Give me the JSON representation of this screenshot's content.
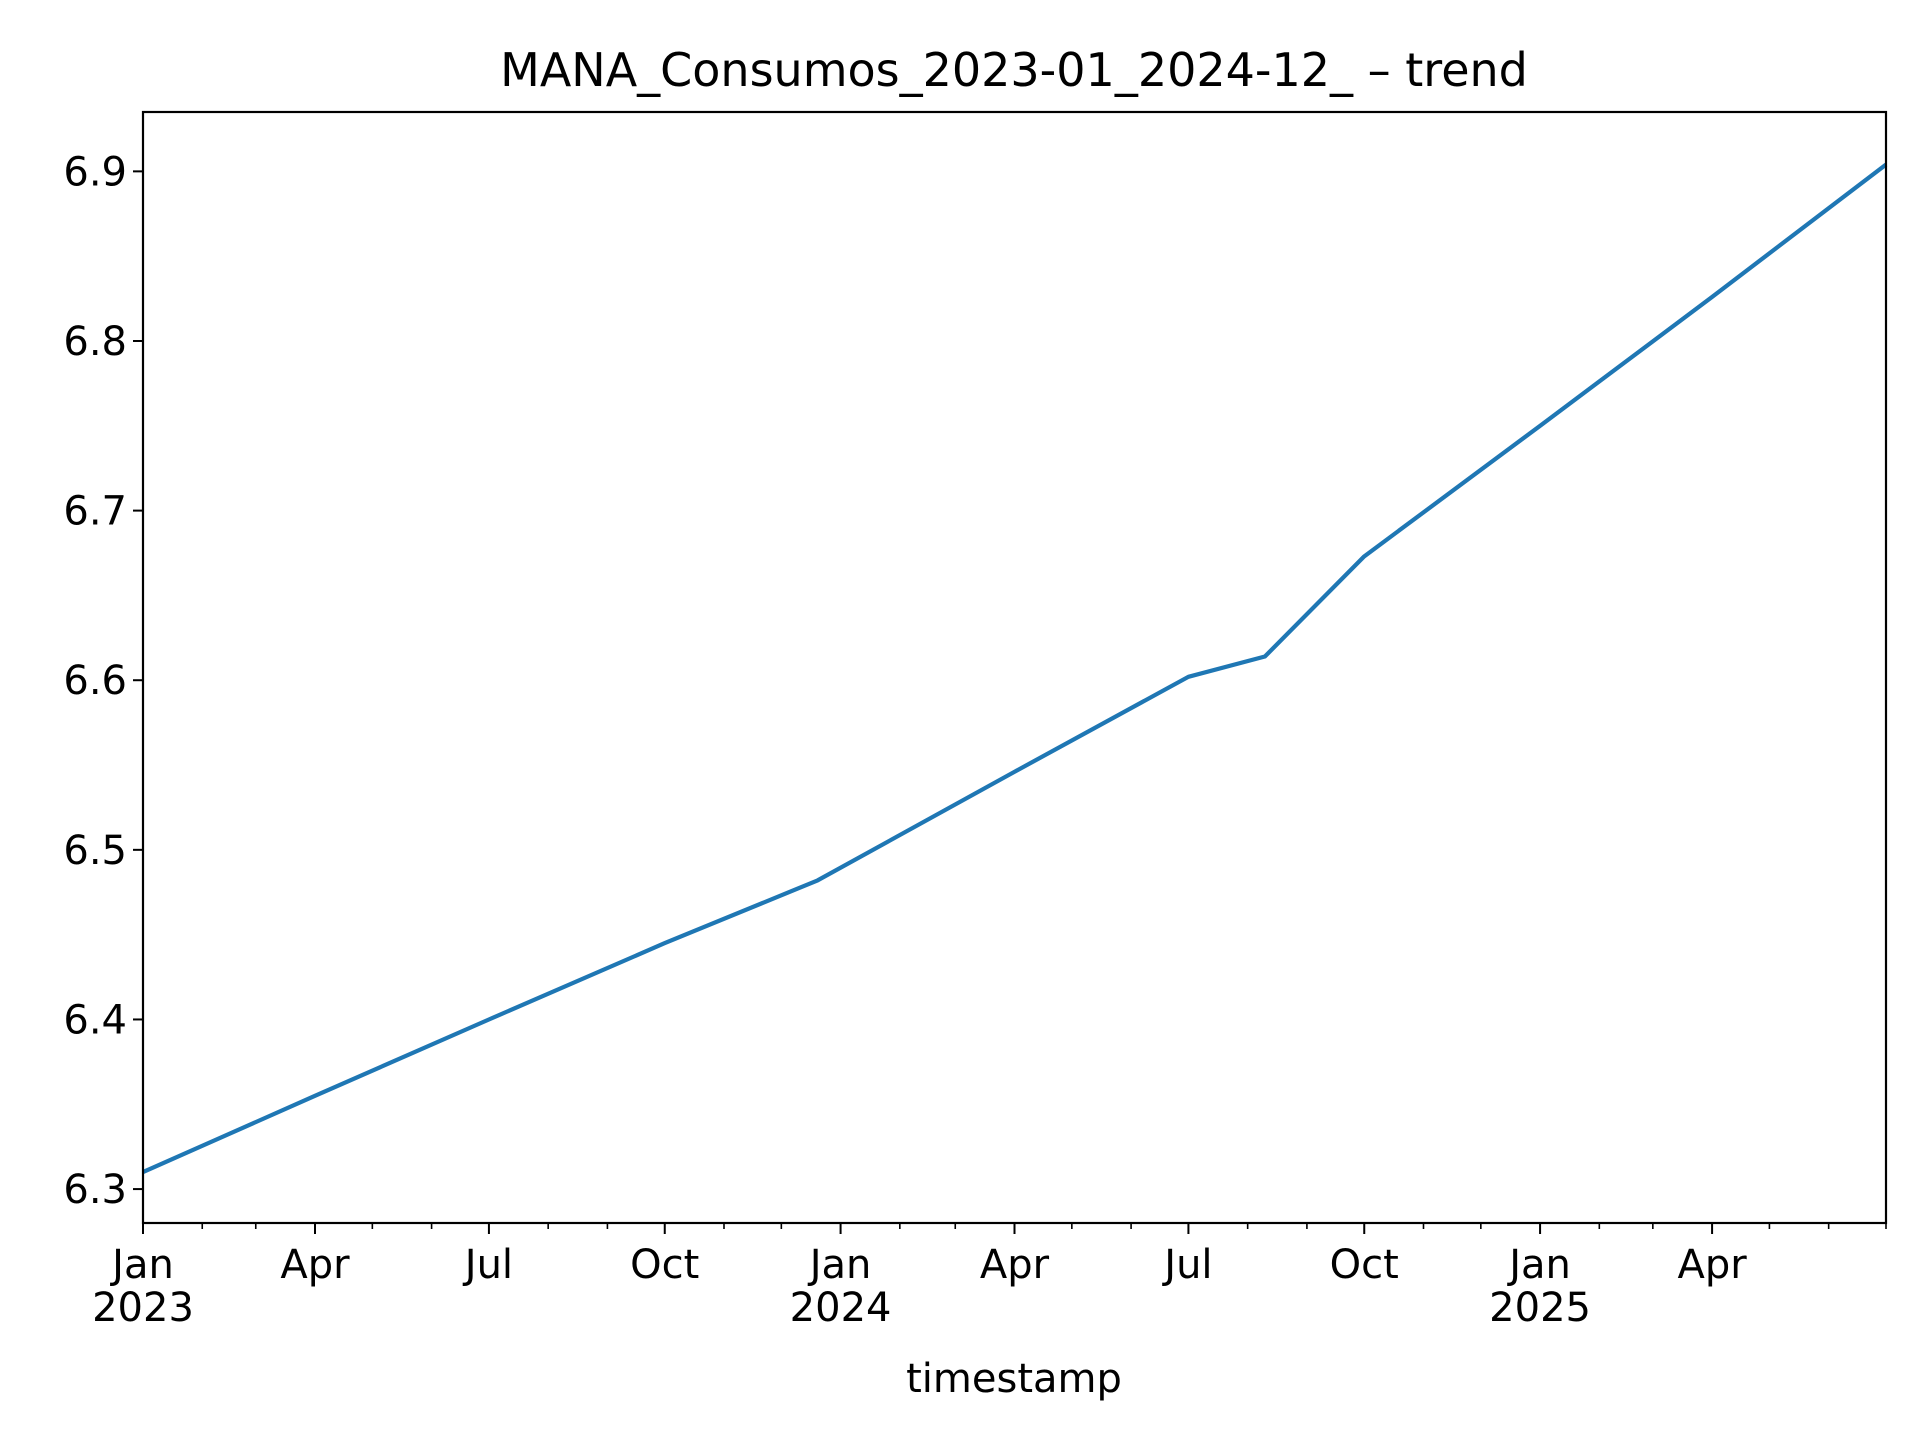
{
  "chart_data": {
    "type": "line",
    "title": "MANA_Consumos_2023-01_2024-12_ – trend",
    "xlabel": "timestamp",
    "ylabel": "",
    "xlim": [
      "2023-01-01",
      "2025-07-01"
    ],
    "ylim": [
      6.28,
      6.935
    ],
    "grid": false,
    "legend": "none",
    "colors": {
      "line": "#1f77b4",
      "axes": "#000000",
      "background": "#ffffff"
    },
    "yticks": [
      {
        "value": 6.3,
        "label": "6.3"
      },
      {
        "value": 6.4,
        "label": "6.4"
      },
      {
        "value": 6.5,
        "label": "6.5"
      },
      {
        "value": 6.6,
        "label": "6.6"
      },
      {
        "value": 6.7,
        "label": "6.7"
      },
      {
        "value": 6.8,
        "label": "6.8"
      },
      {
        "value": 6.9,
        "label": "6.9"
      }
    ],
    "xticks_major": [
      {
        "date": "2023-01-01",
        "label": "Jan",
        "year": "2023"
      },
      {
        "date": "2023-04-01",
        "label": "Apr",
        "year": ""
      },
      {
        "date": "2023-07-01",
        "label": "Jul",
        "year": ""
      },
      {
        "date": "2023-10-01",
        "label": "Oct",
        "year": ""
      },
      {
        "date": "2024-01-01",
        "label": "Jan",
        "year": "2024"
      },
      {
        "date": "2024-04-01",
        "label": "Apr",
        "year": ""
      },
      {
        "date": "2024-07-01",
        "label": "Jul",
        "year": ""
      },
      {
        "date": "2024-10-01",
        "label": "Oct",
        "year": ""
      },
      {
        "date": "2025-01-01",
        "label": "Jan",
        "year": "2025"
      },
      {
        "date": "2025-04-01",
        "label": "Apr",
        "year": ""
      }
    ],
    "xticks_minor": [
      "2023-02-01",
      "2023-03-01",
      "2023-05-01",
      "2023-06-01",
      "2023-08-01",
      "2023-09-01",
      "2023-11-01",
      "2023-12-01",
      "2024-02-01",
      "2024-03-01",
      "2024-05-01",
      "2024-06-01",
      "2024-08-01",
      "2024-09-01",
      "2024-11-01",
      "2024-12-01",
      "2025-02-01",
      "2025-03-01",
      "2025-05-01",
      "2025-06-01",
      "2025-07-01"
    ],
    "series": [
      {
        "points": [
          {
            "x": "2023-01-01",
            "y": 6.31
          },
          {
            "x": "2023-04-01",
            "y": 6.355
          },
          {
            "x": "2023-07-01",
            "y": 6.4
          },
          {
            "x": "2023-10-01",
            "y": 6.445
          },
          {
            "x": "2023-12-20",
            "y": 6.482
          },
          {
            "x": "2024-04-01",
            "y": 6.546
          },
          {
            "x": "2024-07-01",
            "y": 6.602
          },
          {
            "x": "2024-08-10",
            "y": 6.614
          },
          {
            "x": "2024-10-01",
            "y": 6.673
          },
          {
            "x": "2025-01-01",
            "y": 6.75
          },
          {
            "x": "2025-04-01",
            "y": 6.826
          },
          {
            "x": "2025-07-01",
            "y": 6.904
          }
        ]
      }
    ]
  }
}
